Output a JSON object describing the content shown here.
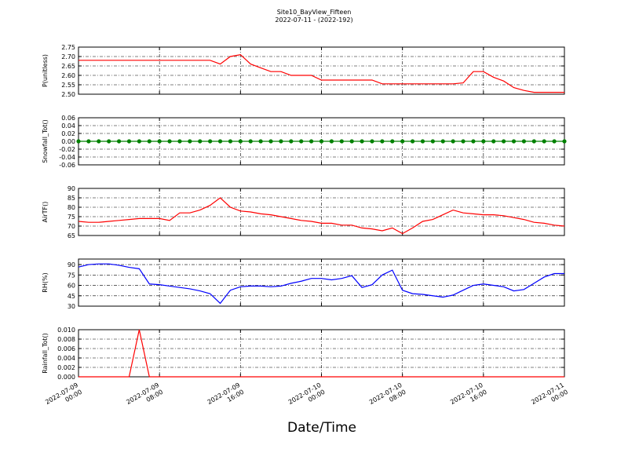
{
  "chart_data": [
    {
      "type": "line",
      "title": "Site10_BayView_Fifteen",
      "subtitle": "2022-07-11 - (2022-192)",
      "ylabel": "P(unitless)",
      "color": "#ff0000",
      "grid": true,
      "x": [
        "2022-07-09 00:00",
        "2022-07-09 01:00",
        "2022-07-09 02:00",
        "2022-07-09 03:00",
        "2022-07-09 04:00",
        "2022-07-09 05:00",
        "2022-07-09 06:00",
        "2022-07-09 07:00",
        "2022-07-09 08:00",
        "2022-07-09 09:00",
        "2022-07-09 10:00",
        "2022-07-09 11:00",
        "2022-07-09 12:00",
        "2022-07-09 13:00",
        "2022-07-09 14:00",
        "2022-07-09 15:00",
        "2022-07-09 16:00",
        "2022-07-09 17:00",
        "2022-07-09 18:00",
        "2022-07-09 19:00",
        "2022-07-09 20:00",
        "2022-07-09 21:00",
        "2022-07-09 22:00",
        "2022-07-09 23:00",
        "2022-07-10 00:00",
        "2022-07-10 01:00",
        "2022-07-10 02:00",
        "2022-07-10 03:00",
        "2022-07-10 04:00",
        "2022-07-10 05:00",
        "2022-07-10 06:00",
        "2022-07-10 07:00",
        "2022-07-10 08:00",
        "2022-07-10 09:00",
        "2022-07-10 10:00",
        "2022-07-10 11:00",
        "2022-07-10 12:00",
        "2022-07-10 13:00",
        "2022-07-10 14:00",
        "2022-07-10 15:00",
        "2022-07-10 16:00",
        "2022-07-10 17:00",
        "2022-07-10 18:00",
        "2022-07-10 19:00",
        "2022-07-10 20:00",
        "2022-07-10 21:00",
        "2022-07-10 22:00",
        "2022-07-10 23:00",
        "2022-07-11 00:00"
      ],
      "values": [
        2.68,
        2.68,
        2.68,
        2.68,
        2.68,
        2.68,
        2.68,
        2.68,
        2.68,
        2.68,
        2.68,
        2.68,
        2.68,
        2.68,
        2.66,
        2.7,
        2.71,
        2.66,
        2.64,
        2.62,
        2.62,
        2.6,
        2.6,
        2.6,
        2.575,
        2.575,
        2.575,
        2.575,
        2.575,
        2.575,
        2.555,
        2.555,
        2.555,
        2.555,
        2.555,
        2.555,
        2.555,
        2.555,
        2.56,
        2.62,
        2.62,
        2.59,
        2.57,
        2.535,
        2.52,
        2.51,
        2.51,
        2.51,
        2.51
      ],
      "xlim": [
        "2022-07-09 00:00",
        "2022-07-11 00:00"
      ],
      "ylim": [
        2.5,
        2.75
      ],
      "yticks": [
        {
          "value": 2.5,
          "label": "2.50"
        },
        2.55,
        {
          "value": 2.6,
          "label": "2.60"
        },
        2.65,
        {
          "value": 2.7,
          "label": "2.70"
        },
        2.75
      ]
    },
    {
      "type": "line",
      "ylabel": "Snowfall_Tot()",
      "color": "#008000",
      "marker": true,
      "grid": true,
      "x": [
        "2022-07-09 00:00",
        "2022-07-09 01:00",
        "2022-07-09 02:00",
        "2022-07-09 03:00",
        "2022-07-09 04:00",
        "2022-07-09 05:00",
        "2022-07-09 06:00",
        "2022-07-09 07:00",
        "2022-07-09 08:00",
        "2022-07-09 09:00",
        "2022-07-09 10:00",
        "2022-07-09 11:00",
        "2022-07-09 12:00",
        "2022-07-09 13:00",
        "2022-07-09 14:00",
        "2022-07-09 15:00",
        "2022-07-09 16:00",
        "2022-07-09 17:00",
        "2022-07-09 18:00",
        "2022-07-09 19:00",
        "2022-07-09 20:00",
        "2022-07-09 21:00",
        "2022-07-09 22:00",
        "2022-07-09 23:00",
        "2022-07-10 00:00",
        "2022-07-10 01:00",
        "2022-07-10 02:00",
        "2022-07-10 03:00",
        "2022-07-10 04:00",
        "2022-07-10 05:00",
        "2022-07-10 06:00",
        "2022-07-10 07:00",
        "2022-07-10 08:00",
        "2022-07-10 09:00",
        "2022-07-10 10:00",
        "2022-07-10 11:00",
        "2022-07-10 12:00",
        "2022-07-10 13:00",
        "2022-07-10 14:00",
        "2022-07-10 15:00",
        "2022-07-10 16:00",
        "2022-07-10 17:00",
        "2022-07-10 18:00",
        "2022-07-10 19:00",
        "2022-07-10 20:00",
        "2022-07-10 21:00",
        "2022-07-10 22:00",
        "2022-07-10 23:00",
        "2022-07-11 00:00"
      ],
      "values": [
        0,
        0,
        0,
        0,
        0,
        0,
        0,
        0,
        0,
        0,
        0,
        0,
        0,
        0,
        0,
        0,
        0,
        0,
        0,
        0,
        0,
        0,
        0,
        0,
        0,
        0,
        0,
        0,
        0,
        0,
        0,
        0,
        0,
        0,
        0,
        0,
        0,
        0,
        0,
        0,
        0,
        0,
        0,
        0,
        0,
        0,
        0,
        0,
        0
      ],
      "xlim": [
        "2022-07-09 00:00",
        "2022-07-11 00:00"
      ],
      "ylim": [
        -0.06,
        0.06
      ],
      "yticks": [
        -0.06,
        -0.04,
        -0.02,
        {
          "value": 0,
          "label": "0.00"
        },
        0.02,
        0.04,
        0.06
      ]
    },
    {
      "type": "line",
      "ylabel": "AirTF()",
      "color": "#ff0000",
      "grid": true,
      "x": [
        "2022-07-09 00:00",
        "2022-07-09 01:00",
        "2022-07-09 02:00",
        "2022-07-09 03:00",
        "2022-07-09 04:00",
        "2022-07-09 05:00",
        "2022-07-09 06:00",
        "2022-07-09 07:00",
        "2022-07-09 08:00",
        "2022-07-09 09:00",
        "2022-07-09 10:00",
        "2022-07-09 11:00",
        "2022-07-09 12:00",
        "2022-07-09 13:00",
        "2022-07-09 14:00",
        "2022-07-09 15:00",
        "2022-07-09 16:00",
        "2022-07-09 17:00",
        "2022-07-09 18:00",
        "2022-07-09 19:00",
        "2022-07-09 20:00",
        "2022-07-09 21:00",
        "2022-07-09 22:00",
        "2022-07-09 23:00",
        "2022-07-10 00:00",
        "2022-07-10 01:00",
        "2022-07-10 02:00",
        "2022-07-10 03:00",
        "2022-07-10 04:00",
        "2022-07-10 05:00",
        "2022-07-10 06:00",
        "2022-07-10 07:00",
        "2022-07-10 08:00",
        "2022-07-10 09:00",
        "2022-07-10 10:00",
        "2022-07-10 11:00",
        "2022-07-10 12:00",
        "2022-07-10 13:00",
        "2022-07-10 14:00",
        "2022-07-10 15:00",
        "2022-07-10 16:00",
        "2022-07-10 17:00",
        "2022-07-10 18:00",
        "2022-07-10 19:00",
        "2022-07-10 20:00",
        "2022-07-10 21:00",
        "2022-07-10 22:00",
        "2022-07-10 23:00",
        "2022-07-11 00:00"
      ],
      "values": [
        72.5,
        72,
        72,
        72.5,
        73,
        73.5,
        74,
        74,
        74,
        73,
        77,
        77,
        78.5,
        81,
        85,
        80,
        78,
        77.5,
        76.5,
        76,
        75,
        74,
        73,
        72.5,
        71.5,
        71.5,
        70.5,
        70.5,
        69,
        68.5,
        67.5,
        69,
        66,
        69,
        72.5,
        73.5,
        76,
        78.5,
        77,
        76.5,
        76,
        76,
        75.5,
        74.5,
        73.5,
        72,
        71.5,
        70.5,
        70
      ],
      "xlim": [
        "2022-07-09 00:00",
        "2022-07-11 00:00"
      ],
      "ylim": [
        65,
        90
      ],
      "yticks": [
        65,
        70,
        75,
        80,
        85,
        90
      ]
    },
    {
      "type": "line",
      "ylabel": "RH(%)",
      "color": "#0000ff",
      "grid": true,
      "x": [
        "2022-07-09 00:00",
        "2022-07-09 01:00",
        "2022-07-09 02:00",
        "2022-07-09 03:00",
        "2022-07-09 04:00",
        "2022-07-09 05:00",
        "2022-07-09 06:00",
        "2022-07-09 07:00",
        "2022-07-09 08:00",
        "2022-07-09 09:00",
        "2022-07-09 10:00",
        "2022-07-09 11:00",
        "2022-07-09 12:00",
        "2022-07-09 13:00",
        "2022-07-09 14:00",
        "2022-07-09 15:00",
        "2022-07-09 16:00",
        "2022-07-09 17:00",
        "2022-07-09 18:00",
        "2022-07-09 19:00",
        "2022-07-09 20:00",
        "2022-07-09 21:00",
        "2022-07-09 22:00",
        "2022-07-09 23:00",
        "2022-07-10 00:00",
        "2022-07-10 01:00",
        "2022-07-10 02:00",
        "2022-07-10 03:00",
        "2022-07-10 04:00",
        "2022-07-10 05:00",
        "2022-07-10 06:00",
        "2022-07-10 07:00",
        "2022-07-10 08:00",
        "2022-07-10 09:00",
        "2022-07-10 10:00",
        "2022-07-10 11:00",
        "2022-07-10 12:00",
        "2022-07-10 13:00",
        "2022-07-10 14:00",
        "2022-07-10 15:00",
        "2022-07-10 16:00",
        "2022-07-10 17:00",
        "2022-07-10 18:00",
        "2022-07-10 19:00",
        "2022-07-10 20:00",
        "2022-07-10 21:00",
        "2022-07-10 22:00",
        "2022-07-10 23:00",
        "2022-07-11 00:00"
      ],
      "values": [
        86.5,
        90,
        91,
        91,
        89,
        86,
        84,
        62,
        61,
        59,
        57,
        55,
        52,
        48,
        34,
        53,
        58,
        59,
        59,
        58,
        59,
        63,
        66,
        70,
        70,
        68,
        70,
        74,
        57,
        61,
        75,
        82,
        53,
        48,
        47,
        45,
        43,
        46,
        53,
        60,
        62,
        60,
        58,
        52,
        54,
        63,
        72,
        77,
        77
      ],
      "xlim": [
        "2022-07-09 00:00",
        "2022-07-11 00:00"
      ],
      "ylim": [
        30,
        98
      ],
      "yticks": [
        30,
        45,
        60,
        75,
        90
      ]
    },
    {
      "type": "line",
      "ylabel": "Rainfall_Tot()",
      "xlabel": "Date/Time",
      "color": "#ff0000",
      "grid": true,
      "x": [
        "2022-07-09 00:00",
        "2022-07-09 01:00",
        "2022-07-09 02:00",
        "2022-07-09 03:00",
        "2022-07-09 04:00",
        "2022-07-09 05:00",
        "2022-07-09 06:00",
        "2022-07-09 07:00",
        "2022-07-09 08:00",
        "2022-07-09 09:00",
        "2022-07-09 10:00",
        "2022-07-09 11:00",
        "2022-07-09 12:00",
        "2022-07-09 13:00",
        "2022-07-09 14:00",
        "2022-07-09 15:00",
        "2022-07-09 16:00",
        "2022-07-09 17:00",
        "2022-07-09 18:00",
        "2022-07-09 19:00",
        "2022-07-09 20:00",
        "2022-07-09 21:00",
        "2022-07-09 22:00",
        "2022-07-09 23:00",
        "2022-07-10 00:00",
        "2022-07-10 01:00",
        "2022-07-10 02:00",
        "2022-07-10 03:00",
        "2022-07-10 04:00",
        "2022-07-10 05:00",
        "2022-07-10 06:00",
        "2022-07-10 07:00",
        "2022-07-10 08:00",
        "2022-07-10 09:00",
        "2022-07-10 10:00",
        "2022-07-10 11:00",
        "2022-07-10 12:00",
        "2022-07-10 13:00",
        "2022-07-10 14:00",
        "2022-07-10 15:00",
        "2022-07-10 16:00",
        "2022-07-10 17:00",
        "2022-07-10 18:00",
        "2022-07-10 19:00",
        "2022-07-10 20:00",
        "2022-07-10 21:00",
        "2022-07-10 22:00",
        "2022-07-10 23:00",
        "2022-07-11 00:00"
      ],
      "values": [
        0,
        0,
        0,
        0,
        0,
        0,
        0.01,
        0,
        0,
        0,
        0,
        0,
        0,
        0,
        0,
        0,
        0,
        0,
        0,
        0,
        0,
        0,
        0,
        0,
        0,
        0,
        0,
        0,
        0,
        0,
        0,
        0,
        0,
        0,
        0,
        0,
        0,
        0,
        0,
        0,
        0,
        0,
        0,
        0,
        0,
        0,
        0,
        0,
        0
      ],
      "xlim": [
        "2022-07-09 00:00",
        "2022-07-11 00:00"
      ],
      "ylim": [
        0,
        0.01
      ],
      "yticks": [
        {
          "value": 0,
          "label": "0.000"
        },
        0.002,
        0.004,
        0.006,
        0.008,
        {
          "value": 0.01,
          "label": "0.010"
        }
      ],
      "xticks": [
        "2022-07-09 00:00",
        "2022-07-09 08:00",
        "2022-07-09 16:00",
        "2022-07-10 00:00",
        "2022-07-10 08:00",
        "2022-07-10 16:00",
        "2022-07-11 00:00"
      ]
    }
  ]
}
